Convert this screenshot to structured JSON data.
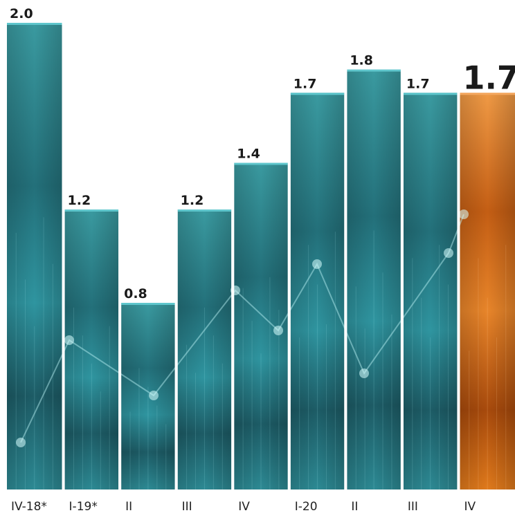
{
  "chart_data": {
    "type": "bar",
    "categories": [
      "IV-18*",
      "I-19*",
      "II",
      "III",
      "IV",
      "I-20",
      "II",
      "III",
      "IV"
    ],
    "values": [
      2.0,
      1.2,
      0.8,
      1.2,
      1.4,
      1.7,
      1.8,
      1.7,
      1.7
    ],
    "value_labels": [
      "2.0",
      "1.2",
      "0.8",
      "1.2",
      "1.4",
      "1.7",
      "1.8",
      "1.7",
      "1.7"
    ],
    "highlight_index": 8,
    "ylim": [
      0,
      2.0
    ],
    "grid": false,
    "legend": "none",
    "title": "",
    "xlabel": "",
    "ylabel": ""
  },
  "colors": {
    "bar": "#2e8f96",
    "bar_dark": "#123f47",
    "bar_light": "#5fc6cc",
    "highlight": "#e07a1c",
    "highlight_dark": "#7a3208",
    "highlight_light": "#f4a860",
    "separator": "#ffffff"
  }
}
